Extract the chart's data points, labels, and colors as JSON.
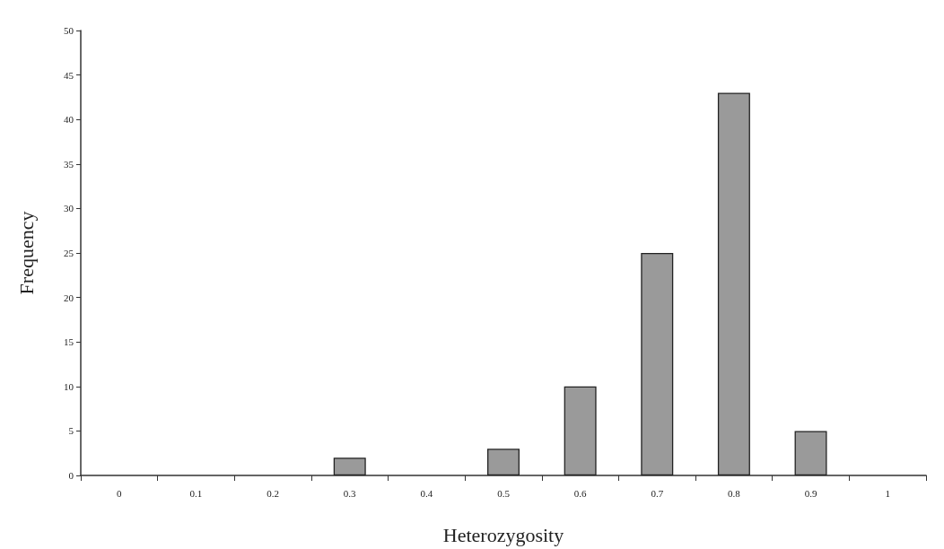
{
  "chart_data": {
    "type": "bar",
    "xlabel": "Heterozygosity",
    "ylabel": "Frequency",
    "categories": [
      "0",
      "0.1",
      "0.2",
      "0.3",
      "0.4",
      "0.5",
      "0.6",
      "0.7",
      "0.8",
      "0.9",
      "1"
    ],
    "values": [
      0,
      0,
      0,
      2,
      0,
      3,
      10,
      25,
      43,
      5,
      0
    ],
    "color": "#9a9a9a",
    "ylim": [
      0,
      50
    ],
    "yticks": [
      0,
      5,
      10,
      15,
      20,
      25,
      30,
      35,
      40,
      45,
      50
    ],
    "grid": false
  }
}
